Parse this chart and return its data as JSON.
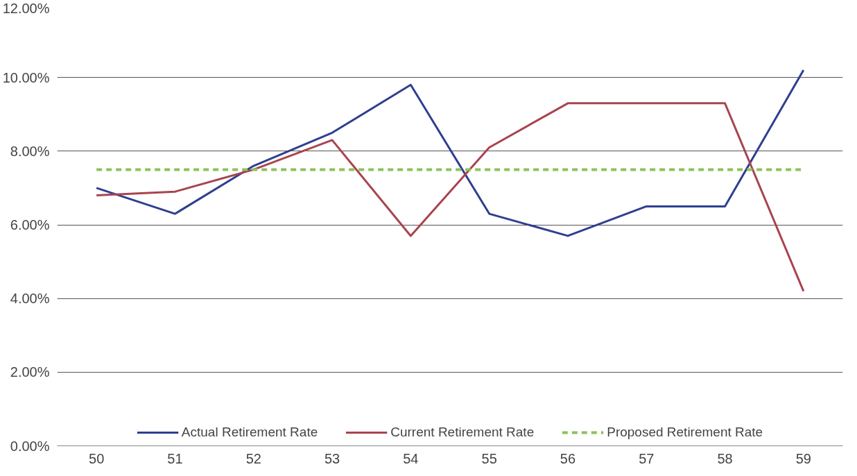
{
  "chart_data": {
    "type": "line",
    "categories": [
      "50",
      "51",
      "52",
      "53",
      "54",
      "55",
      "56",
      "57",
      "58",
      "59"
    ],
    "series": [
      {
        "name": "Actual Retirement Rate",
        "color": "#2e3f8f",
        "values": [
          7.0,
          6.3,
          7.6,
          8.5,
          9.8,
          6.3,
          5.7,
          6.5,
          6.5,
          10.2
        ]
      },
      {
        "name": "Current Retirement Rate",
        "color": "#a8444f",
        "values": [
          6.8,
          6.9,
          7.5,
          8.3,
          5.7,
          8.1,
          9.3,
          9.3,
          9.3,
          4.2
        ]
      },
      {
        "name": "Proposed Retirement Rate",
        "color": "#8dc25a",
        "line_style": "dashed",
        "values": [
          7.5,
          7.5,
          7.5,
          7.5,
          7.5,
          7.5,
          7.5,
          7.5,
          7.5,
          7.5
        ]
      }
    ],
    "ylim": [
      0,
      12
    ],
    "yticks": [
      {
        "value": 0,
        "label": "0.00%"
      },
      {
        "value": 2,
        "label": "2.00%"
      },
      {
        "value": 4,
        "label": "4.00%"
      },
      {
        "value": 6,
        "label": "6.00%"
      },
      {
        "value": 8,
        "label": "8.00%"
      },
      {
        "value": 10,
        "label": "10.00%"
      },
      {
        "value": 12,
        "label": "12.00%"
      }
    ],
    "grid": "y",
    "legend": "bottom",
    "line_style": "solid",
    "marker": "none"
  }
}
